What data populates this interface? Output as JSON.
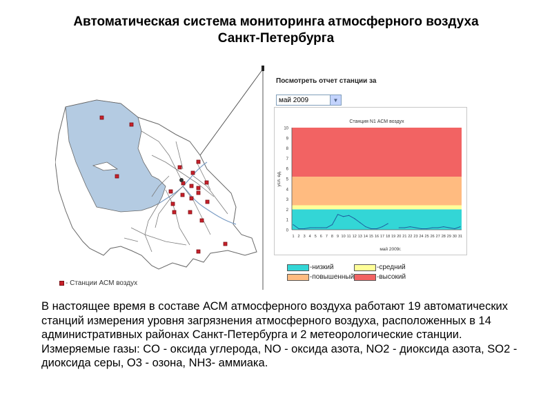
{
  "header": {
    "title_line1": "Автоматическая система мониторинга атмосферного воздуха",
    "title_line2": "Санкт-Петербурга"
  },
  "map": {
    "legend_text": "- Станции АСМ воздух",
    "colors": {
      "water": "#b4cbe2",
      "stations": "#c8202a",
      "roads": "#7a7a7a"
    }
  },
  "report": {
    "label": "Посмотреть отчет станции за",
    "selected_month": "май 2009"
  },
  "chart_data": {
    "type": "line",
    "title": "Станция N1 АСМ воздух",
    "ylabel": "усл. ед.",
    "xlabel": "май 2009г.",
    "ylim": [
      0,
      10
    ],
    "yticks": [
      "0",
      "1",
      "2",
      "3",
      "4",
      "5",
      "6",
      "7",
      "8",
      "9",
      "10"
    ],
    "x": [
      "1",
      "2",
      "3",
      "4",
      "5",
      "6",
      "7",
      "8",
      "9",
      "10",
      "11",
      "12",
      "13",
      "14",
      "15",
      "16",
      "17",
      "18",
      "19",
      "20",
      "21",
      "22",
      "23",
      "24",
      "25",
      "26",
      "27",
      "28",
      "29",
      "30",
      "31"
    ],
    "series": [
      {
        "values": [
          0.5,
          0.1,
          0.1,
          0.2,
          0.2,
          0.2,
          0.2,
          0.5,
          1.5,
          1.3,
          1.4,
          1.1,
          0.7,
          0.3,
          0.1,
          0.1,
          0.3,
          0.6,
          null,
          0.2,
          0.2,
          0.3,
          0.2,
          0.1,
          0.1,
          0.2,
          0.2,
          0.3,
          0.2,
          0.1,
          0.3
        ]
      }
    ],
    "bands": [
      {
        "label": "-низкий",
        "from": 0,
        "to": 2,
        "color": "#33d6d6"
      },
      {
        "label": "-средний",
        "from": 2,
        "to": 2.4,
        "color": "#ffff99"
      },
      {
        "label": "-повышенный",
        "from": 2.4,
        "to": 5.2,
        "color": "#ffbb80"
      },
      {
        "label": "-высокий",
        "from": 5.2,
        "to": 10,
        "color": "#f26363"
      }
    ],
    "grid": false,
    "legend": "bottom"
  },
  "text": {
    "para1": "В настоящее время в составе АСМ атмосферного воздуха работают 19 автоматических станций измерения уровня загрязнения атмосферного воздуха, расположенных в 14 административных районах Санкт-Петербурга и 2 метеорологические станции.",
    "para2": "Измеряемые газы: CO - оксида углерода, NO - оксида азота, NO2 - диоксида азота, SO2 - диоксида серы, O3 - озона, NH3- аммиака."
  }
}
